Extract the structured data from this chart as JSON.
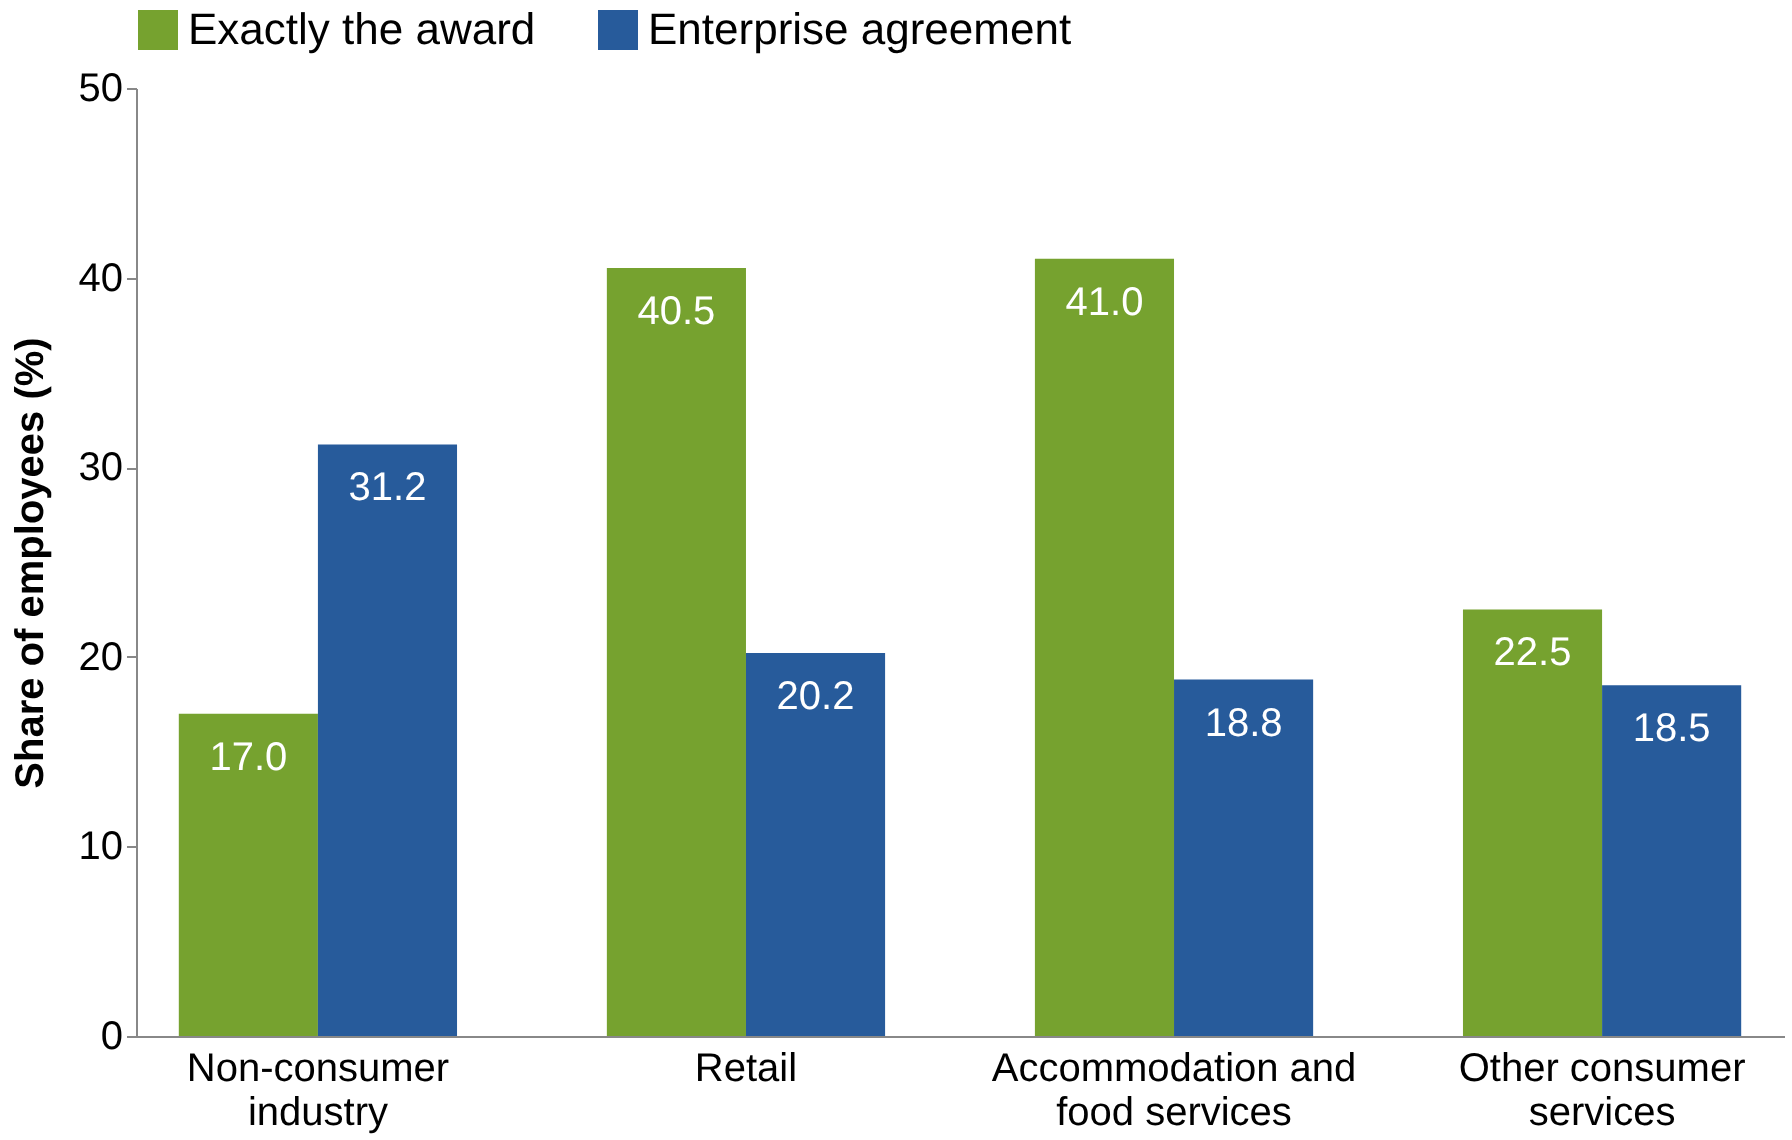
{
  "chart_data": {
    "type": "bar",
    "ylabel": "Share of employees (%)",
    "categories": [
      "Non-consumer industry",
      "Retail",
      "Accommodation and food services",
      "Other consumer services"
    ],
    "series": [
      {
        "name": "Exactly the award",
        "color": "#76a22f",
        "values": [
          17.0,
          40.5,
          41.0,
          22.5
        ],
        "value_labels": [
          "17.0",
          "40.5",
          "41.0",
          "22.5"
        ]
      },
      {
        "name": "Enterprise agreement",
        "color": "#275b9b",
        "values": [
          31.2,
          20.2,
          18.8,
          18.5
        ],
        "value_labels": [
          "31.2",
          "20.2",
          "18.8",
          "18.5"
        ]
      }
    ],
    "ylim": [
      0,
      50
    ],
    "yticks": [
      0,
      10,
      20,
      30,
      40,
      50
    ],
    "grid": false,
    "legend": "top"
  }
}
